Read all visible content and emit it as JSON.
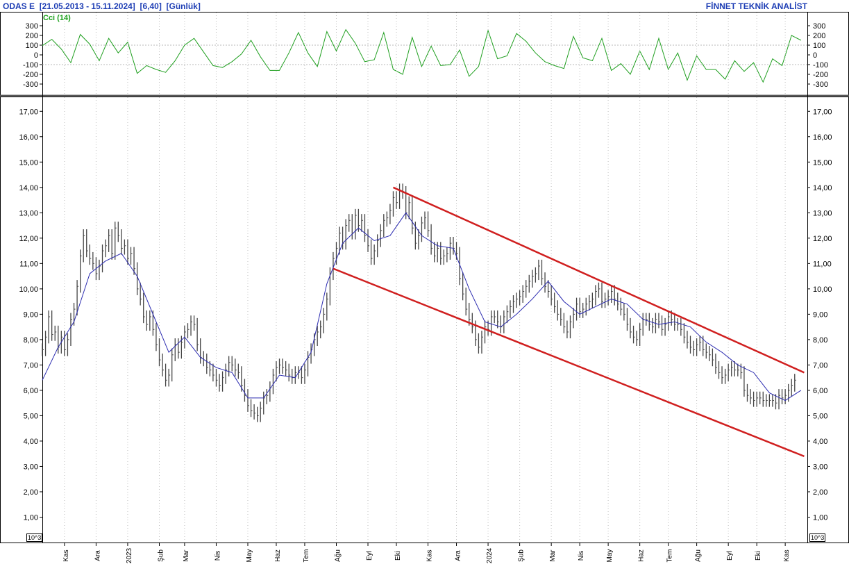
{
  "header": {
    "symbol": "ODAS  E",
    "range": "[21.05.2013 - 15.11.2024]",
    "last": "[6,40]",
    "period": "[Günlük]",
    "vendor": "FİNNET TEKNİK ANALİST"
  },
  "colors": {
    "price_bars": "#444444",
    "moving_average": "#2b2bb0",
    "cci_line": "#1f9f1f",
    "cci_label": "#1aa01a",
    "channel": "#d01f1f",
    "grid": "#bfbfbf",
    "header_text": "#1f3fb5"
  },
  "chart_data": [
    {
      "type": "line",
      "panel": "indicator",
      "title": "Cci (14)",
      "ylim": [
        -350,
        350
      ],
      "yticks": [
        "300",
        "200",
        "100",
        "0",
        "-100",
        "-200",
        "-300"
      ],
      "reference_lines": [
        100,
        -100
      ],
      "grid": true,
      "series": [
        {
          "name": "Cci (14)",
          "x": [
            0,
            1.5,
            3,
            4.5,
            6,
            7.5,
            9,
            10.5,
            12,
            13.5,
            15,
            16.5,
            18,
            19.5,
            21,
            22.5,
            24,
            25.5,
            27,
            28.5,
            30,
            31.5,
            33,
            34.5,
            36,
            37.5,
            39,
            40.5,
            42,
            43.5,
            45,
            46.5,
            48,
            49.5,
            51,
            52.5,
            54,
            55.5,
            57,
            58.5,
            60,
            61.5,
            63,
            64.5,
            66,
            67.5,
            69,
            70.5,
            72,
            73.5,
            75,
            76.5,
            78,
            79.5,
            81,
            82.5,
            84,
            85.5,
            87,
            88.5,
            90,
            91.5,
            93,
            94.5,
            96,
            97.5,
            99,
            100.5,
            102,
            103.5,
            105,
            106.5,
            108,
            109.5,
            111,
            112.5,
            114,
            115.5,
            117,
            118.5,
            120
          ],
          "values": [
            95,
            160,
            60,
            -80,
            210,
            110,
            -60,
            170,
            20,
            130,
            -190,
            -110,
            -150,
            -180,
            -60,
            100,
            170,
            30,
            -110,
            -130,
            -70,
            10,
            150,
            -20,
            -160,
            -160,
            20,
            230,
            20,
            -120,
            240,
            40,
            260,
            120,
            -70,
            -50,
            230,
            -150,
            -200,
            180,
            -120,
            90,
            -110,
            -100,
            50,
            -220,
            -120,
            250,
            -40,
            -10,
            220,
            140,
            20,
            -70,
            -110,
            -140,
            190,
            -30,
            -60,
            170,
            -160,
            -90,
            -200,
            40,
            -150,
            170,
            -150,
            20,
            -260,
            -10,
            -150,
            -150,
            -250,
            -60,
            -170,
            -80,
            -280,
            -40,
            -110,
            200,
            150
          ]
        }
      ]
    },
    {
      "type": "bar",
      "panel": "price",
      "xlabel": "",
      "ylabel": "",
      "ylim": [
        0,
        17.5
      ],
      "yticks": [
        "17,00",
        "16,00",
        "15,00",
        "14,00",
        "13,00",
        "12,00",
        "11,00",
        "10,00",
        "9,00",
        "8,00",
        "7,00",
        "6,00",
        "5,00",
        "4,00",
        "3,00",
        "2,00",
        "1,00"
      ],
      "xticks": [
        {
          "label": "Kas",
          "x": 7
        },
        {
          "label": "Ara",
          "x": 17
        },
        {
          "label": "2023",
          "x": 27
        },
        {
          "label": "Şub",
          "x": 37
        },
        {
          "label": "Mar",
          "x": 45
        },
        {
          "label": "Nis",
          "x": 55
        },
        {
          "label": "May",
          "x": 65
        },
        {
          "label": "Haz",
          "x": 74
        },
        {
          "label": "Tem",
          "x": 83
        },
        {
          "label": "Ağu",
          "x": 93
        },
        {
          "label": "Eyl",
          "x": 103
        },
        {
          "label": "Eki",
          "x": 112
        },
        {
          "label": "Kas",
          "x": 122
        },
        {
          "label": "Ara",
          "x": 131
        },
        {
          "label": "2024",
          "x": 141
        },
        {
          "label": "Şub",
          "x": 151
        },
        {
          "label": "Mar",
          "x": 161
        },
        {
          "label": "Nis",
          "x": 170
        },
        {
          "label": "May",
          "x": 179
        },
        {
          "label": "Haz",
          "x": 189
        },
        {
          "label": "Tem",
          "x": 198
        },
        {
          "label": "Ağu",
          "x": 207
        },
        {
          "label": "Eyl",
          "x": 217
        },
        {
          "label": "Eki",
          "x": 226
        },
        {
          "label": "Kas",
          "x": 235
        }
      ],
      "grid": true,
      "bars_note": "daily OHLC bars, values approximate",
      "bars_x": [
        0,
        1,
        2,
        3,
        4,
        5,
        6,
        7,
        8,
        9,
        10,
        11,
        12,
        13,
        14,
        15,
        16,
        17,
        18,
        19,
        20,
        21,
        22,
        23,
        24,
        25,
        26,
        27,
        28,
        29,
        30,
        31,
        32,
        33,
        34,
        35,
        36,
        37,
        38,
        39,
        40,
        41,
        42,
        43,
        44,
        45,
        46,
        47,
        48,
        49,
        50,
        51,
        52,
        53,
        54,
        55,
        56,
        57,
        58,
        59,
        60,
        61,
        62,
        63,
        64,
        65,
        66,
        67,
        68,
        69,
        70,
        71,
        72,
        73,
        74,
        75,
        76,
        77,
        78,
        79,
        80,
        81,
        82,
        83,
        84,
        85,
        86,
        87,
        88,
        89,
        90,
        91,
        92,
        93,
        94,
        95,
        96,
        97,
        98,
        99,
        100,
        101,
        102,
        103,
        104,
        105,
        106,
        107,
        108,
        109,
        110,
        111,
        112,
        113,
        114,
        115,
        116,
        117,
        118,
        119,
        120,
        121,
        122,
        123,
        124,
        125,
        126,
        127,
        128,
        129,
        130,
        131,
        132,
        133,
        134,
        135,
        136,
        137,
        138,
        139,
        140,
        141,
        142,
        143,
        144,
        145,
        146,
        147,
        148,
        149,
        150,
        151,
        152,
        153,
        154,
        155,
        156,
        157,
        158,
        159,
        160,
        161,
        162,
        163,
        164,
        165,
        166,
        167,
        168,
        169,
        170,
        171,
        172,
        173,
        174,
        175,
        176,
        177,
        178,
        179,
        180,
        181,
        182,
        183,
        184,
        185,
        186,
        187,
        188,
        189,
        190,
        191,
        192,
        193,
        194,
        195,
        196,
        197,
        198,
        199,
        200,
        201,
        202,
        203,
        204,
        205,
        206,
        207,
        208,
        209,
        210,
        211,
        212,
        213,
        214,
        215,
        216,
        217,
        218,
        219,
        220,
        221,
        222,
        223,
        224,
        225,
        226,
        227,
        228,
        229,
        230,
        231,
        232,
        233,
        234,
        235,
        236,
        237,
        238,
        239,
        240,
        241
      ],
      "bars_close": [
        7.6,
        8.1,
        8.9,
        8.2,
        8.3,
        7.7,
        8.1,
        7.6,
        8.0,
        8.8,
        9.2,
        10.1,
        11.3,
        12.1,
        11.5,
        11.2,
        11.0,
        10.6,
        10.9,
        11.5,
        11.7,
        12.1,
        11.4,
        12.4,
        12.1,
        11.6,
        11.7,
        11.2,
        11.4,
        10.8,
        10.0,
        9.6,
        8.9,
        8.6,
        8.9,
        8.4,
        7.8,
        7.2,
        6.8,
        6.4,
        6.6,
        7.4,
        7.8,
        7.5,
        7.9,
        8.3,
        8.4,
        8.7,
        8.6,
        7.8,
        7.3,
        7.2,
        6.9,
        6.8,
        6.6,
        6.4,
        6.2,
        6.5,
        6.8,
        7.1,
        7.0,
        6.8,
        6.7,
        6.2,
        5.8,
        5.4,
        5.2,
        5.1,
        5.0,
        5.3,
        5.7,
        5.8,
        6.1,
        6.6,
        6.9,
        7.0,
        6.9,
        6.8,
        6.6,
        6.5,
        6.7,
        6.7,
        6.5,
        6.8,
        7.3,
        7.6,
        8.0,
        8.3,
        8.5,
        9.0,
        9.6,
        10.6,
        11.2,
        11.6,
        12.2,
        11.8,
        12.5,
        12.7,
        12.2,
        12.9,
        12.5,
        12.7,
        12.1,
        11.7,
        11.2,
        11.5,
        11.9,
        12.3,
        12.7,
        12.8,
        13.1,
        13.6,
        13.4,
        13.9,
        13.8,
        13.0,
        13.4,
        12.4,
        11.8,
        12.1,
        12.6,
        12.8,
        12.3,
        11.6,
        11.3,
        11.6,
        11.2,
        11.3,
        11.4,
        11.8,
        11.6,
        11.4,
        10.4,
        9.8,
        9.2,
        8.8,
        8.5,
        8.0,
        7.7,
        8.1,
        8.5,
        8.4,
        8.9,
        8.9,
        8.7,
        8.5,
        8.9,
        9.1,
        9.3,
        9.5,
        9.6,
        9.7,
        9.9,
        10.1,
        10.3,
        10.5,
        10.6,
        10.9,
        10.4,
        10.1,
        9.9,
        9.6,
        9.3,
        9.0,
        8.8,
        8.5,
        8.3,
        8.7,
        9.0,
        9.4,
        9.1,
        9.2,
        9.4,
        9.5,
        9.6,
        9.9,
        10.0,
        9.5,
        9.6,
        9.7,
        9.9,
        9.6,
        9.4,
        9.2,
        9.0,
        8.6,
        8.3,
        8.1,
        8.0,
        8.4,
        8.8,
        8.8,
        8.6,
        8.5,
        8.8,
        8.7,
        8.4,
        8.6,
        8.9,
        8.8,
        8.6,
        8.6,
        8.4,
        8.1,
        7.9,
        7.7,
        7.6,
        7.8,
        7.9,
        7.6,
        7.5,
        7.4,
        7.2,
        6.9,
        6.7,
        6.5,
        6.6,
        6.8,
        6.9,
        6.8,
        6.8,
        6.7,
        6.0,
        5.8,
        5.7,
        5.6,
        5.7,
        5.7,
        5.6,
        5.6,
        5.6,
        5.6,
        5.5,
        5.8,
        5.7,
        5.8,
        6.0,
        6.2,
        6.4
      ],
      "series": [
        {
          "name": "moving_average",
          "x": [
            0,
            5,
            10,
            15,
            20,
            25,
            30,
            35,
            40,
            45,
            50,
            55,
            60,
            65,
            70,
            75,
            80,
            85,
            90,
            95,
            100,
            105,
            110,
            115,
            120,
            125,
            130,
            135,
            140,
            145,
            150,
            155,
            160,
            165,
            170,
            175,
            180,
            185,
            190,
            195,
            200,
            205,
            210,
            215,
            220,
            225,
            230,
            235,
            240
          ],
          "values": [
            6.4,
            7.7,
            8.7,
            10.6,
            11.1,
            11.4,
            10.5,
            9.0,
            7.5,
            8.1,
            7.3,
            6.9,
            6.7,
            5.7,
            5.7,
            6.6,
            6.5,
            7.5,
            10.2,
            11.8,
            12.4,
            11.9,
            12.1,
            13.0,
            12.1,
            11.7,
            11.6,
            10.0,
            8.7,
            8.5,
            9.0,
            9.6,
            10.3,
            9.5,
            9.0,
            9.3,
            9.6,
            9.4,
            8.8,
            8.6,
            8.7,
            8.5,
            7.9,
            7.5,
            7.0,
            6.7,
            5.9,
            5.6,
            6.0
          ]
        },
        {
          "name": "upper_channel",
          "x": [
            111,
            241
          ],
          "values": [
            14.0,
            6.7
          ]
        },
        {
          "name": "lower_channel",
          "x": [
            92,
            241
          ],
          "values": [
            10.8,
            3.4
          ]
        }
      ]
    }
  ],
  "corner_labels": {
    "bottom_left": "10^3",
    "bottom_right": "10^3"
  }
}
